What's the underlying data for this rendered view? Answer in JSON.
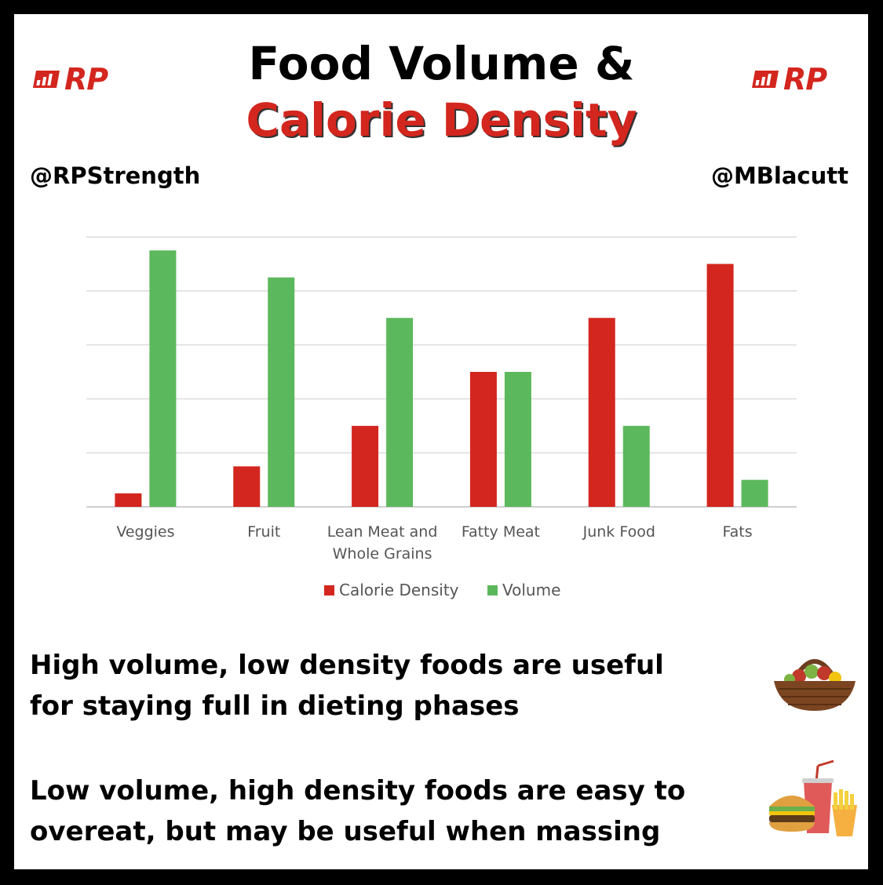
{
  "header": {
    "title_line1": "Food Volume &",
    "title_line2": "Calorie Density",
    "logo_text": "RP",
    "handle_left": "@RPStrength",
    "handle_right": "@MBlacutt"
  },
  "colors": {
    "calorie_density": "#d3261e",
    "volume": "#5cb85c",
    "brand_red": "#d3261e"
  },
  "chart_data": {
    "type": "bar",
    "categories": [
      "Veggies",
      "Fruit",
      "Lean Meat and Whole Grains",
      "Fatty Meat",
      "Junk Food",
      "Fats"
    ],
    "category_lines": [
      [
        "Veggies"
      ],
      [
        "Fruit"
      ],
      [
        "Lean Meat and",
        "Whole Grains"
      ],
      [
        "Fatty Meat"
      ],
      [
        "Junk Food"
      ],
      [
        "Fats"
      ]
    ],
    "series": [
      {
        "name": "Calorie Density",
        "values": [
          0.5,
          1.5,
          3,
          5,
          7,
          9
        ],
        "color": "#d3261e"
      },
      {
        "name": "Volume",
        "values": [
          9.5,
          8.5,
          7,
          5,
          3,
          1
        ],
        "color": "#5cb85c"
      }
    ],
    "ylim": [
      0,
      10
    ],
    "gridlines": true,
    "y_tick_labels_shown": false,
    "legend_position": "bottom-center"
  },
  "captions": {
    "line1a": "High volume, low density foods are useful",
    "line1b": "for staying full in dieting phases",
    "line2a": "Low volume, high density foods are easy to",
    "line2b": "overeat, but may be useful when massing"
  },
  "illustrations": {
    "top": "fruit-basket-icon",
    "bottom": "fast-food-icon"
  }
}
